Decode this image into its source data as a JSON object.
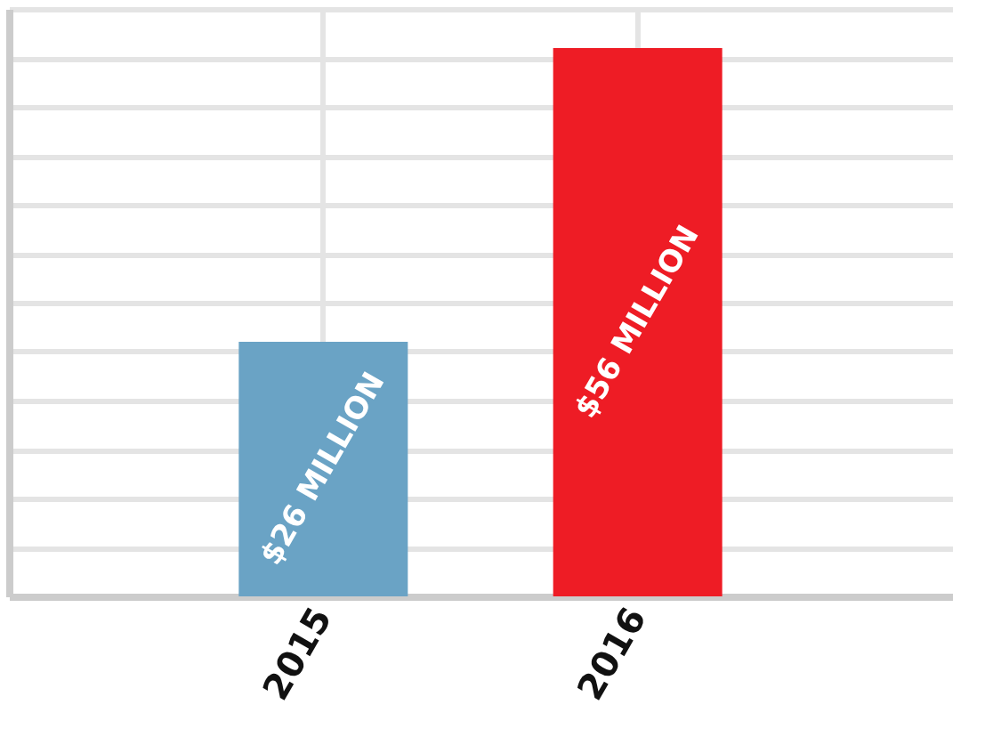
{
  "chart_data": {
    "type": "bar",
    "categories": [
      "2015",
      "2016"
    ],
    "values": [
      26,
      56
    ],
    "colors": [
      "#6aa3c5",
      "#ee1c25"
    ],
    "value_labels": [
      "$26 MILLION",
      "$56 MILLION"
    ],
    "grid": true,
    "tick_labels": "x"
  }
}
